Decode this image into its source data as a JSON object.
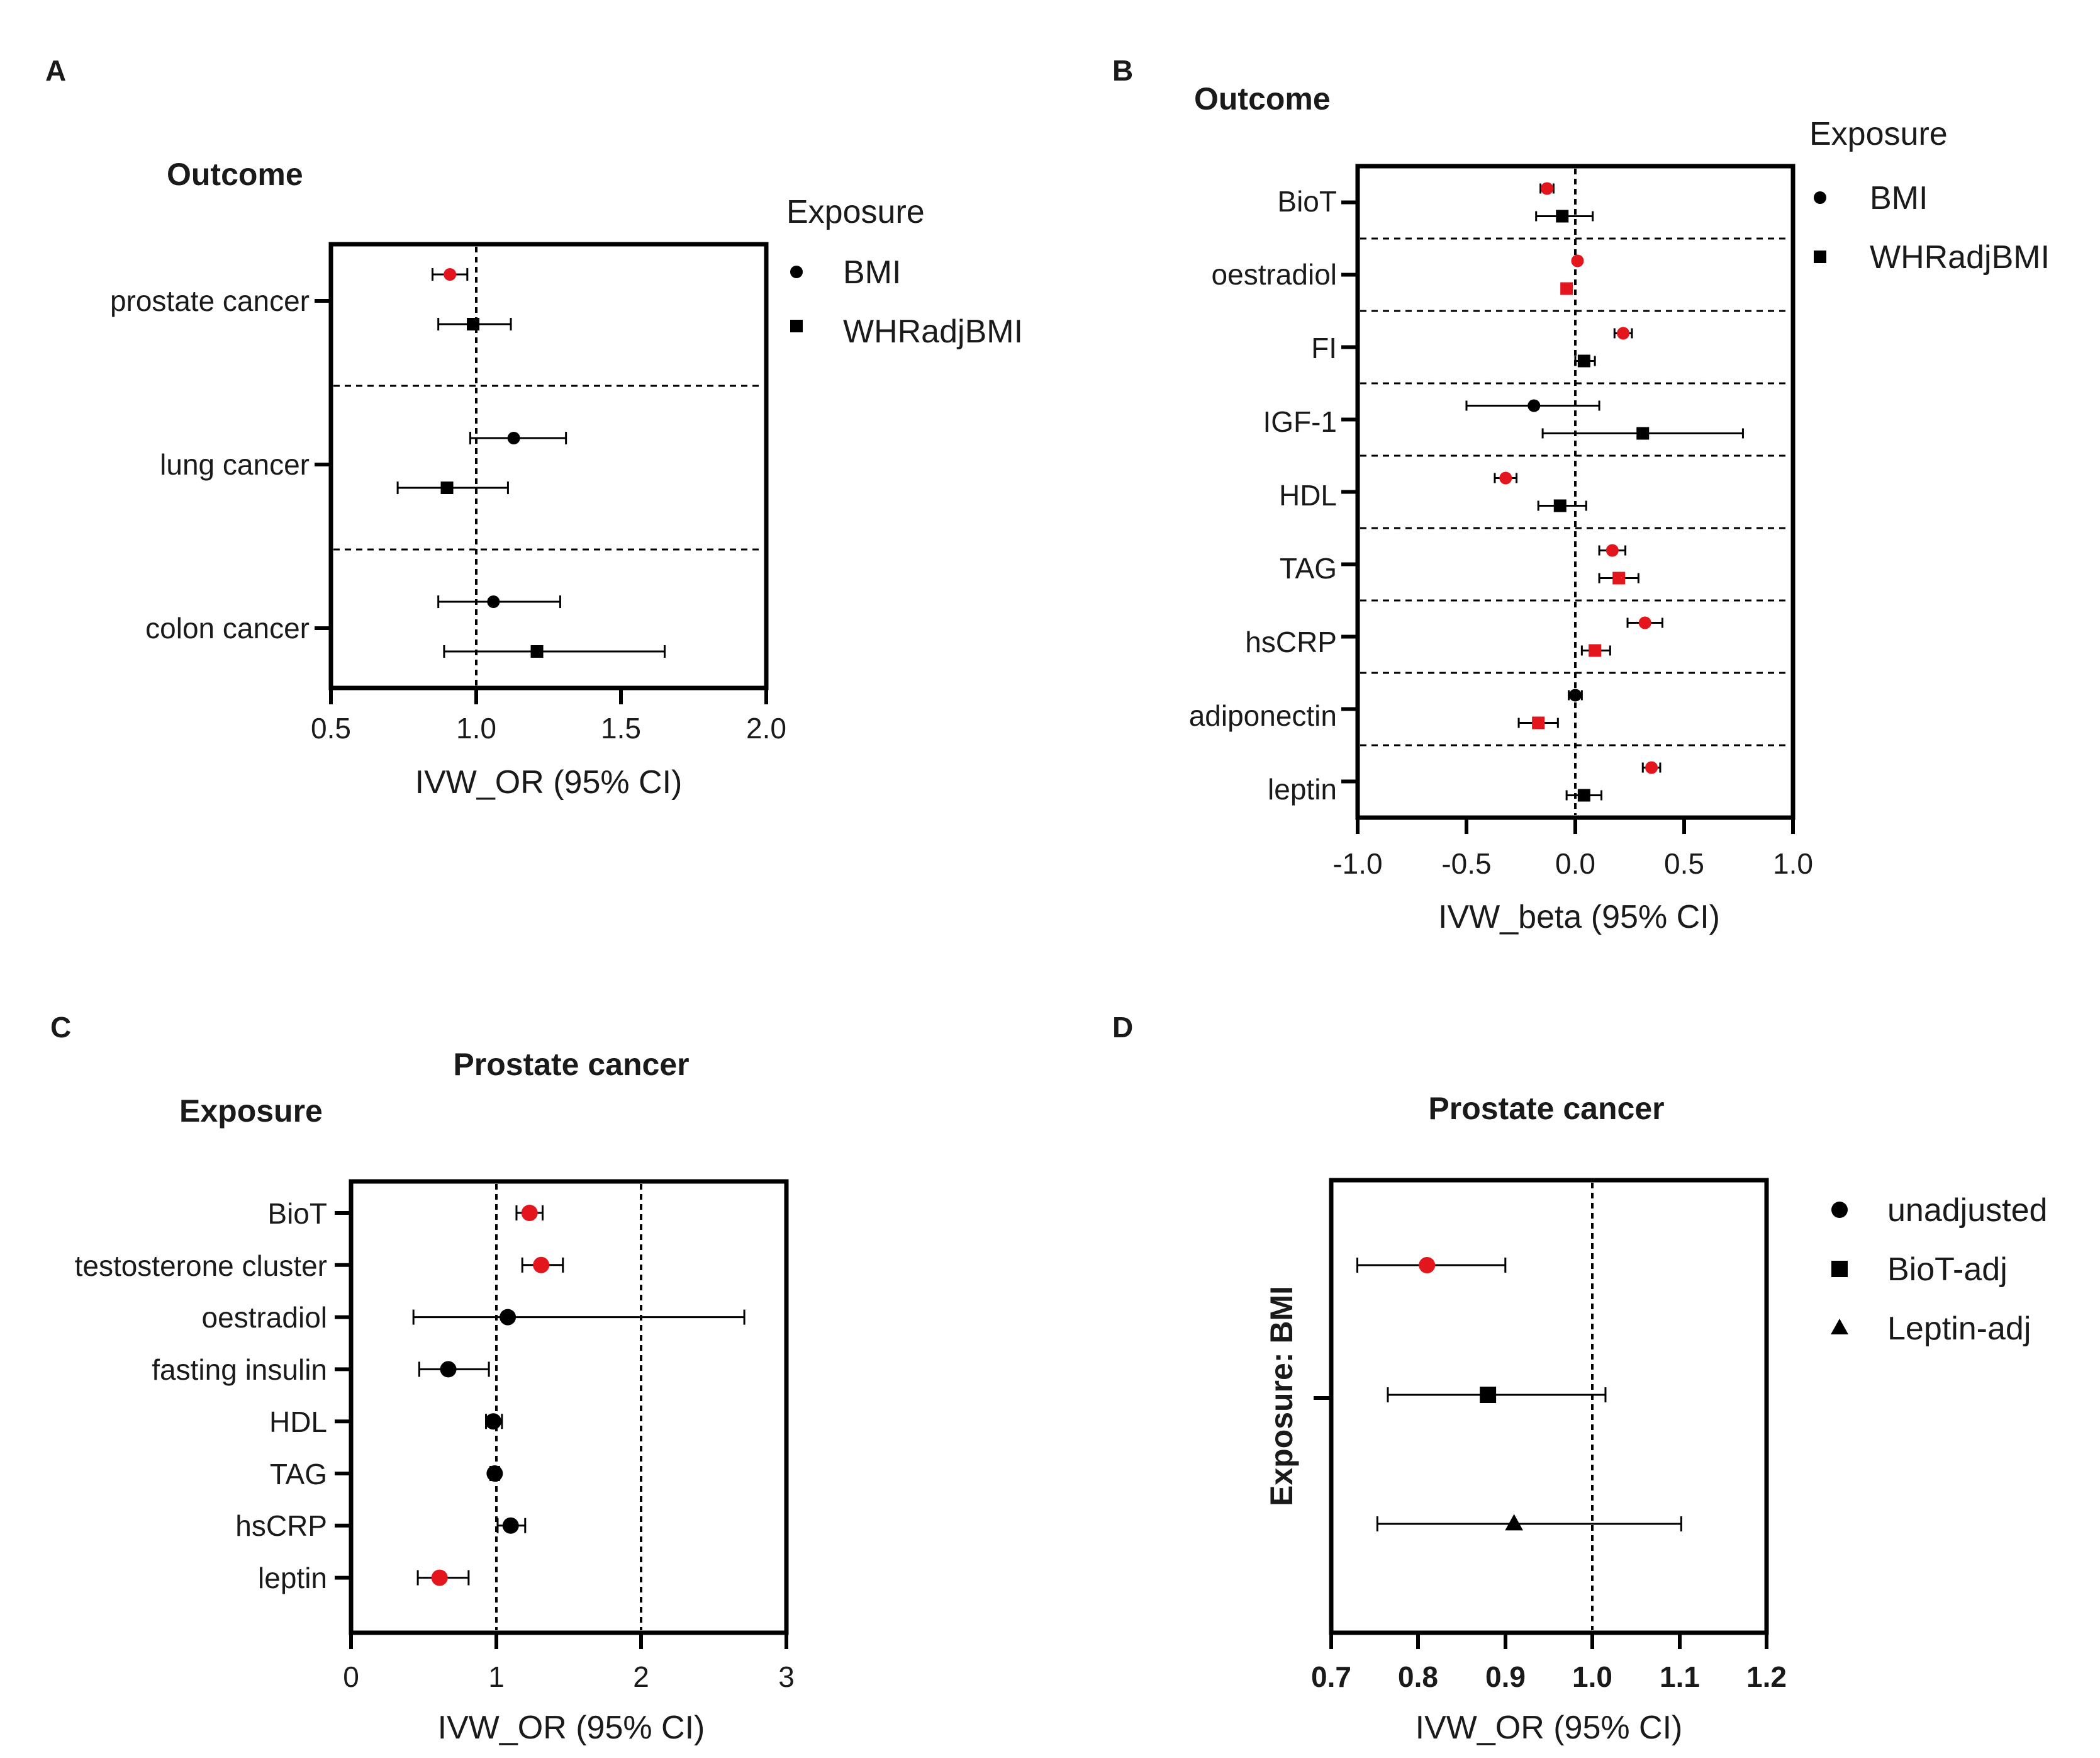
{
  "colors": {
    "black": "#000000",
    "highlight": "#e3151d"
  },
  "chart_data": [
    {
      "panel": "A",
      "type": "forest",
      "title": "Outcome",
      "xlabel": "IVW_OR (95% CI)",
      "xlim": [
        0.5,
        2.0
      ],
      "xticks": [
        "0.5",
        "1.0",
        "1.5",
        "2.0"
      ],
      "reference_line": 1.0,
      "legend_title": "Exposure",
      "legend": [
        {
          "label": "BMI",
          "marker": "circle"
        },
        {
          "label": "WHRadjBMI",
          "marker": "square"
        }
      ],
      "categories": [
        "prostate cancer",
        "lung cancer",
        "colon cancer"
      ],
      "series": [
        {
          "name": "BMI",
          "marker": "circle",
          "values": [
            0.91,
            1.13,
            1.06
          ],
          "lower": [
            0.85,
            0.98,
            0.87
          ],
          "upper": [
            0.97,
            1.31,
            1.29
          ],
          "highlight": [
            true,
            false,
            false
          ]
        },
        {
          "name": "WHRadjBMI",
          "marker": "square",
          "values": [
            0.99,
            0.9,
            1.21
          ],
          "lower": [
            0.87,
            0.73,
            0.89
          ],
          "upper": [
            1.12,
            1.11,
            1.65
          ],
          "highlight": [
            false,
            false,
            false
          ]
        }
      ]
    },
    {
      "panel": "B",
      "type": "forest",
      "title": "Outcome",
      "xlabel": "IVW_beta (95% CI)",
      "xlim": [
        -1.0,
        1.0
      ],
      "xticks": [
        "-1.0",
        "-0.5",
        "0.0",
        "0.5",
        "1.0"
      ],
      "reference_line": 0.0,
      "legend_title": "Exposure",
      "legend": [
        {
          "label": "BMI",
          "marker": "circle"
        },
        {
          "label": "WHRadjBMI",
          "marker": "square"
        }
      ],
      "categories": [
        "BioT",
        "oestradiol",
        "FI",
        "IGF-1",
        "HDL",
        "TAG",
        "hsCRP",
        "adiponectin",
        "leptin"
      ],
      "series": [
        {
          "name": "BMI",
          "marker": "circle",
          "values": [
            -0.13,
            0.01,
            0.22,
            -0.19,
            -0.32,
            0.17,
            0.32,
            0.0,
            0.35
          ],
          "lower": [
            -0.16,
            0.0,
            0.18,
            -0.5,
            -0.37,
            0.11,
            0.24,
            -0.03,
            0.31
          ],
          "upper": [
            -0.1,
            0.02,
            0.26,
            0.11,
            -0.27,
            0.23,
            0.4,
            0.03,
            0.39
          ],
          "highlight": [
            true,
            true,
            true,
            false,
            true,
            true,
            true,
            false,
            true
          ]
        },
        {
          "name": "WHRadjBMI",
          "marker": "square",
          "values": [
            -0.06,
            -0.04,
            0.04,
            0.31,
            -0.07,
            0.2,
            0.09,
            -0.17,
            0.04
          ],
          "lower": [
            -0.18,
            -0.06,
            0.0,
            -0.15,
            -0.17,
            0.11,
            0.03,
            -0.26,
            -0.04
          ],
          "upper": [
            0.08,
            -0.02,
            0.09,
            0.77,
            0.05,
            0.29,
            0.16,
            -0.08,
            0.12
          ],
          "highlight": [
            false,
            true,
            false,
            false,
            false,
            true,
            true,
            true,
            false
          ]
        }
      ]
    },
    {
      "panel": "C",
      "type": "forest",
      "title": "Prostate cancer",
      "ylabel_heading": "Exposure",
      "xlabel": "IVW_OR (95% CI)",
      "xlim": [
        0,
        3
      ],
      "xticks": [
        "0",
        "1",
        "2",
        "3"
      ],
      "reference_lines": [
        1,
        2
      ],
      "categories": [
        "BioT",
        "testosterone cluster",
        "oestradiol",
        "fasting insulin",
        "HDL",
        "TAG",
        "hsCRP",
        "leptin"
      ],
      "series": [
        {
          "name": "OR",
          "marker": "circle",
          "values": [
            1.23,
            1.31,
            1.08,
            0.67,
            0.98,
            0.99,
            1.1,
            0.61
          ],
          "lower": [
            1.14,
            1.18,
            0.43,
            0.47,
            0.93,
            0.96,
            1.01,
            0.46
          ],
          "upper": [
            1.32,
            1.46,
            2.71,
            0.95,
            1.04,
            1.02,
            1.2,
            0.81
          ],
          "highlight": [
            true,
            true,
            false,
            false,
            false,
            false,
            false,
            true
          ]
        }
      ]
    },
    {
      "panel": "D",
      "type": "forest",
      "title": "Prostate cancer",
      "ylabel": "Exposure: BMI",
      "xlabel": "IVW_OR (95% CI)",
      "xlim": [
        0.7,
        1.2
      ],
      "xticks": [
        "0.7",
        "0.8",
        "0.9",
        "1.0",
        "1.1",
        "1.2"
      ],
      "reference_line": 1.0,
      "legend": [
        {
          "label": "unadjusted",
          "marker": "circle"
        },
        {
          "label": "BioT-adj",
          "marker": "square"
        },
        {
          "label": "Leptin-adj",
          "marker": "triangle"
        }
      ],
      "series": [
        {
          "name": "unadjusted",
          "marker": "circle",
          "value": 0.81,
          "lower": 0.73,
          "upper": 0.9,
          "highlight": true
        },
        {
          "name": "BioT-adj",
          "marker": "square",
          "value": 0.88,
          "lower": 0.765,
          "upper": 1.015,
          "highlight": false
        },
        {
          "name": "Leptin-adj",
          "marker": "triangle",
          "value": 0.91,
          "lower": 0.753,
          "upper": 1.102,
          "highlight": false
        }
      ]
    }
  ]
}
